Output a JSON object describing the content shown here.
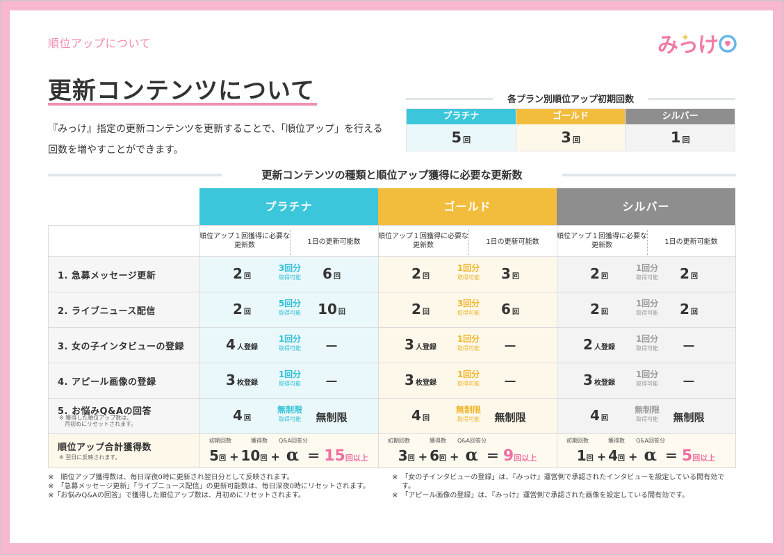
{
  "section_label": "順位アップについて",
  "logo": {
    "text": "みっけ",
    "colors": {
      "pink": "#f27aa9",
      "blue": "#67b7e6"
    }
  },
  "page_title": "更新コンテンツについて",
  "intro": "『みっけ』指定の更新コンテンツを更新することで、「順位アップ」を行える回数を増やすことができます。",
  "initial_plan": {
    "heading": "各プラン別順位アップ初期回数",
    "plans": [
      {
        "name": "プラチナ",
        "value": "5",
        "unit": "回",
        "color": "#3cc6dc"
      },
      {
        "name": "ゴールド",
        "value": "3",
        "unit": "回",
        "color": "#f2bd3c"
      },
      {
        "name": "シルバー",
        "value": "1",
        "unit": "回",
        "color": "#8e8e8e"
      }
    ]
  },
  "table": {
    "heading": "更新コンテンツの種類と順位アップ獲得に必要な更新数",
    "plans": [
      "プラチナ",
      "ゴールド",
      "シルバー"
    ],
    "sub_need": "順位アップ１回獲得に必要な更新数",
    "sub_daily": "1日の更新可能数",
    "rows": [
      {
        "label": "1. 急募メッセージ更新",
        "cells": [
          {
            "need": "2",
            "need_unit": "回",
            "gain": "3回分",
            "gain_sub": "取得可能",
            "daily": "6",
            "daily_unit": "回"
          },
          {
            "need": "2",
            "need_unit": "回",
            "gain": "1回分",
            "gain_sub": "取得可能",
            "daily": "3",
            "daily_unit": "回"
          },
          {
            "need": "2",
            "need_unit": "回",
            "gain": "1回分",
            "gain_sub": "取得可能",
            "daily": "2",
            "daily_unit": "回"
          }
        ]
      },
      {
        "label": "2. ライブニュース配信",
        "cells": [
          {
            "need": "2",
            "need_unit": "回",
            "gain": "5回分",
            "gain_sub": "取得可能",
            "daily": "10",
            "daily_unit": "回"
          },
          {
            "need": "2",
            "need_unit": "回",
            "gain": "3回分",
            "gain_sub": "取得可能",
            "daily": "6",
            "daily_unit": "回"
          },
          {
            "need": "2",
            "need_unit": "回",
            "gain": "1回分",
            "gain_sub": "取得可能",
            "daily": "2",
            "daily_unit": "回"
          }
        ]
      },
      {
        "label": "3. 女の子インタビューの登録",
        "cells": [
          {
            "need": "4",
            "need_unit": "人登録",
            "gain": "1回分",
            "gain_sub": "取得可能",
            "daily": "―",
            "daily_unit": ""
          },
          {
            "need": "3",
            "need_unit": "人登録",
            "gain": "1回分",
            "gain_sub": "取得可能",
            "daily": "―",
            "daily_unit": ""
          },
          {
            "need": "2",
            "need_unit": "人登録",
            "gain": "1回分",
            "gain_sub": "取得可能",
            "daily": "―",
            "daily_unit": ""
          }
        ]
      },
      {
        "label": "4. アピール画像の登録",
        "cells": [
          {
            "need": "3",
            "need_unit": "枚登録",
            "gain": "1回分",
            "gain_sub": "取得可能",
            "daily": "―",
            "daily_unit": ""
          },
          {
            "need": "3",
            "need_unit": "枚登録",
            "gain": "1回分",
            "gain_sub": "取得可能",
            "daily": "―",
            "daily_unit": ""
          },
          {
            "need": "3",
            "need_unit": "枚登録",
            "gain": "1回分",
            "gain_sub": "取得可能",
            "daily": "―",
            "daily_unit": ""
          }
        ]
      },
      {
        "label": "5. お悩みQ&Aの回答",
        "note1": "※ 獲得した順位アップ数は、",
        "note2": "月初めにリセットされます。",
        "cells": [
          {
            "need": "4",
            "need_unit": "回",
            "gain": "無制限",
            "gain_sub": "取得可能",
            "daily": "無制限",
            "daily_unit": ""
          },
          {
            "need": "4",
            "need_unit": "回",
            "gain": "無制限",
            "gain_sub": "取得可能",
            "daily": "無制限",
            "daily_unit": ""
          },
          {
            "need": "4",
            "need_unit": "回",
            "gain": "無制限",
            "gain_sub": "取得可能",
            "daily": "無制限",
            "daily_unit": ""
          }
        ]
      }
    ],
    "total": {
      "label": "順位アップ合計獲得数",
      "note": "※ 翌日に反映されます。",
      "lbl_initial": "初期回数",
      "lbl_gain": "獲得数",
      "lbl_qa": "Q&A回答分",
      "unit": "回",
      "plus": "+",
      "alpha": "α",
      "equals": "＝",
      "result_unit": "回以上",
      "cells": [
        {
          "initial": "5",
          "gain": "10",
          "result": "15"
        },
        {
          "initial": "3",
          "gain": "6",
          "result": "9"
        },
        {
          "initial": "1",
          "gain": "4",
          "result": "5"
        }
      ]
    }
  },
  "notes_left": [
    "※　順位アップ獲得数は、毎日深夜0時に更新され翌日分として反映されます。",
    "※　「急募メッセージ更新」「ライブニュース配信」の更新可能数は、毎日深夜0時にリセットされます。",
    "※「お悩みQ&Aの回答」で獲得した順位アップ数は、月初めにリセットされます。"
  ],
  "notes_right": [
    "※　「女の子インタビューの登録」は、『みっけ』運営側で承認されたインタビューを設定している間有効です。",
    "※　「アピール画像の登録」は、『みっけ』運営側で承認された画像を設定している間有効です。"
  ]
}
